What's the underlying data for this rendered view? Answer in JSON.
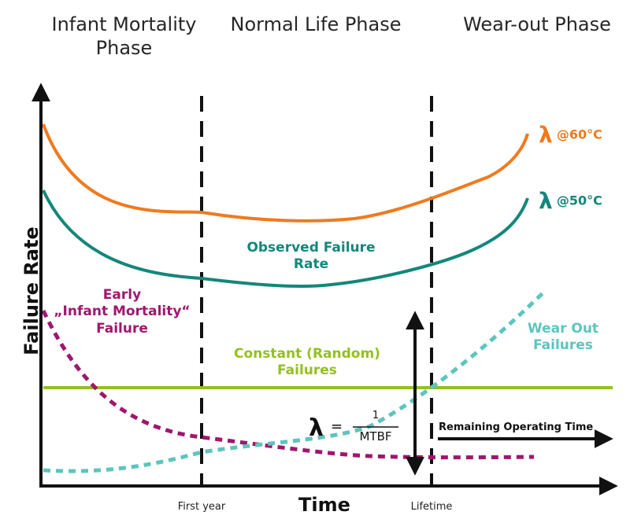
{
  "phases": {
    "infant_line1": "Infant Mortality",
    "infant_line2": "Phase",
    "normal": "Normal Life Phase",
    "wearout": "Wear-out Phase"
  },
  "axes": {
    "y_label": "Failure Rate",
    "x_label": "Time",
    "tick_first_year": "First year",
    "tick_lifetime": "Lifetime"
  },
  "labels": {
    "lambda60_symbol": "λ",
    "lambda60_text": "@60°C",
    "lambda50_symbol": "λ",
    "lambda50_text": "@50°C",
    "observed_line1": "Observed Failure",
    "observed_line2": "Rate",
    "early_line1": "Early",
    "early_line2": "„Infant Mortality“",
    "early_line3": "Failure",
    "constant_line1": "Constant (Random)",
    "constant_line2": "Failures",
    "wearout_line1": "Wear Out",
    "wearout_line2": "Failures",
    "formula_lambda": "λ",
    "formula_eq": "=",
    "formula_num": "1",
    "formula_den": "MTBF",
    "remaining": "Remaining Operating Time"
  },
  "colors": {
    "orange": "#f07a1e",
    "teal": "#13877a",
    "magenta": "#a0166e",
    "lime": "#93c01f",
    "light_teal": "#5cc5bd",
    "black": "#111111"
  }
}
